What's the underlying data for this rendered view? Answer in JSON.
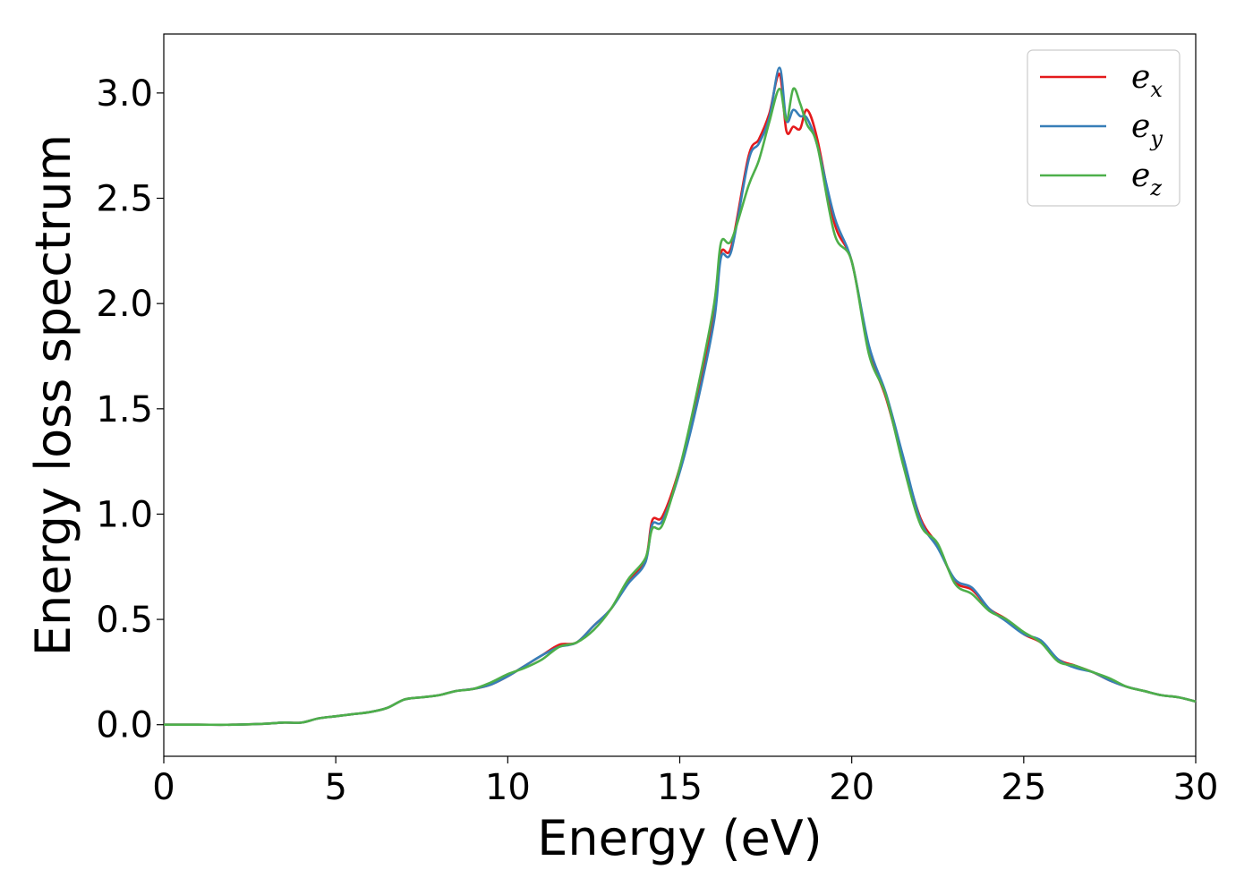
{
  "chart_data": {
    "type": "line",
    "title": "",
    "xlabel": "Energy (eV)",
    "ylabel": "Energy loss spectrum",
    "xlim": [
      0,
      30
    ],
    "ylim": [
      -0.15,
      3.28
    ],
    "xticks": [
      0,
      5,
      10,
      15,
      20,
      25,
      30
    ],
    "xtick_labels": [
      "0",
      "5",
      "10",
      "15",
      "20",
      "25",
      "30"
    ],
    "yticks": [
      0.0,
      0.5,
      1.0,
      1.5,
      2.0,
      2.5,
      3.0
    ],
    "ytick_labels": [
      "0.0",
      "0.5",
      "1.0",
      "1.5",
      "2.0",
      "2.5",
      "3.0"
    ],
    "grid": false,
    "legend_position": "top-right",
    "series": [
      {
        "name": "e_x",
        "label_base": "e",
        "label_sub": "x",
        "color": "#e41a1c",
        "x": [
          0,
          1,
          2,
          3,
          3.5,
          4,
          4.5,
          5,
          5.5,
          6,
          6.5,
          7,
          7.5,
          8,
          8.5,
          9,
          9.5,
          10,
          10.5,
          11,
          11.5,
          12,
          12.5,
          13,
          13.5,
          14,
          14.2,
          14.5,
          15,
          15.5,
          16,
          16.2,
          16.5,
          17,
          17.3,
          17.6,
          17.9,
          18.1,
          18.3,
          18.5,
          18.7,
          19,
          19.5,
          20,
          20.5,
          21,
          21.5,
          22,
          22.5,
          23,
          23.5,
          24,
          24.5,
          25,
          25.5,
          26,
          26.5,
          27,
          27.5,
          28,
          28.5,
          29,
          29.5,
          30
        ],
        "y": [
          0,
          0,
          0,
          0.005,
          0.01,
          0.01,
          0.03,
          0.04,
          0.05,
          0.06,
          0.08,
          0.12,
          0.13,
          0.14,
          0.16,
          0.17,
          0.19,
          0.23,
          0.28,
          0.33,
          0.38,
          0.39,
          0.47,
          0.55,
          0.68,
          0.78,
          0.97,
          0.99,
          1.22,
          1.55,
          1.95,
          2.24,
          2.27,
          2.7,
          2.78,
          2.9,
          3.09,
          2.82,
          2.84,
          2.83,
          2.92,
          2.78,
          2.38,
          2.2,
          1.78,
          1.55,
          1.25,
          0.98,
          0.85,
          0.68,
          0.64,
          0.55,
          0.5,
          0.43,
          0.39,
          0.31,
          0.28,
          0.25,
          0.21,
          0.18,
          0.16,
          0.14,
          0.13,
          0.11
        ]
      },
      {
        "name": "e_y",
        "label_base": "e",
        "label_sub": "y",
        "color": "#377eb8",
        "x": [
          0,
          1,
          2,
          3,
          3.5,
          4,
          4.5,
          5,
          5.5,
          6,
          6.5,
          7,
          7.5,
          8,
          8.5,
          9,
          9.5,
          10,
          10.5,
          11,
          11.5,
          12,
          12.5,
          13,
          13.5,
          14,
          14.2,
          14.5,
          15,
          15.5,
          16,
          16.2,
          16.5,
          17,
          17.3,
          17.6,
          17.9,
          18.1,
          18.3,
          18.5,
          18.7,
          19,
          19.5,
          20,
          20.5,
          21,
          21.5,
          22,
          22.5,
          23,
          23.5,
          24,
          24.5,
          25,
          25.5,
          26,
          26.5,
          27,
          27.5,
          28,
          28.5,
          29,
          29.5,
          30
        ],
        "y": [
          0,
          0,
          0,
          0.005,
          0.01,
          0.01,
          0.03,
          0.04,
          0.05,
          0.06,
          0.08,
          0.12,
          0.13,
          0.14,
          0.16,
          0.17,
          0.19,
          0.23,
          0.28,
          0.33,
          0.37,
          0.39,
          0.47,
          0.55,
          0.67,
          0.77,
          0.95,
          0.97,
          1.2,
          1.52,
          1.92,
          2.22,
          2.25,
          2.68,
          2.76,
          2.88,
          3.12,
          2.87,
          2.92,
          2.89,
          2.88,
          2.75,
          2.41,
          2.2,
          1.8,
          1.57,
          1.27,
          0.97,
          0.84,
          0.69,
          0.65,
          0.55,
          0.49,
          0.43,
          0.4,
          0.31,
          0.27,
          0.25,
          0.21,
          0.18,
          0.16,
          0.14,
          0.13,
          0.11
        ]
      },
      {
        "name": "e_z",
        "label_base": "e",
        "label_sub": "z",
        "color": "#4daf4a",
        "x": [
          0,
          1,
          2,
          3,
          3.5,
          4,
          4.5,
          5,
          5.5,
          6,
          6.5,
          7,
          7.5,
          8,
          8.5,
          9,
          9.5,
          10,
          10.5,
          11,
          11.5,
          12,
          12.5,
          13,
          13.5,
          14,
          14.2,
          14.5,
          15,
          15.5,
          16,
          16.2,
          16.5,
          17,
          17.3,
          17.6,
          17.9,
          18.1,
          18.3,
          18.5,
          18.7,
          19,
          19.5,
          20,
          20.5,
          21,
          21.5,
          22,
          22.5,
          23,
          23.5,
          24,
          24.5,
          25,
          25.5,
          26,
          26.5,
          27,
          27.5,
          28,
          28.5,
          29,
          29.5,
          30
        ],
        "y": [
          0,
          0,
          0,
          0.005,
          0.01,
          0.01,
          0.03,
          0.04,
          0.05,
          0.06,
          0.08,
          0.12,
          0.13,
          0.14,
          0.16,
          0.17,
          0.2,
          0.24,
          0.27,
          0.31,
          0.37,
          0.39,
          0.45,
          0.55,
          0.69,
          0.79,
          0.93,
          0.95,
          1.22,
          1.58,
          2.0,
          2.29,
          2.3,
          2.56,
          2.68,
          2.86,
          3.02,
          2.87,
          3.02,
          2.95,
          2.85,
          2.75,
          2.33,
          2.2,
          1.76,
          1.56,
          1.23,
          0.95,
          0.86,
          0.67,
          0.62,
          0.54,
          0.5,
          0.44,
          0.39,
          0.3,
          0.28,
          0.25,
          0.22,
          0.18,
          0.16,
          0.14,
          0.13,
          0.11
        ]
      }
    ]
  }
}
